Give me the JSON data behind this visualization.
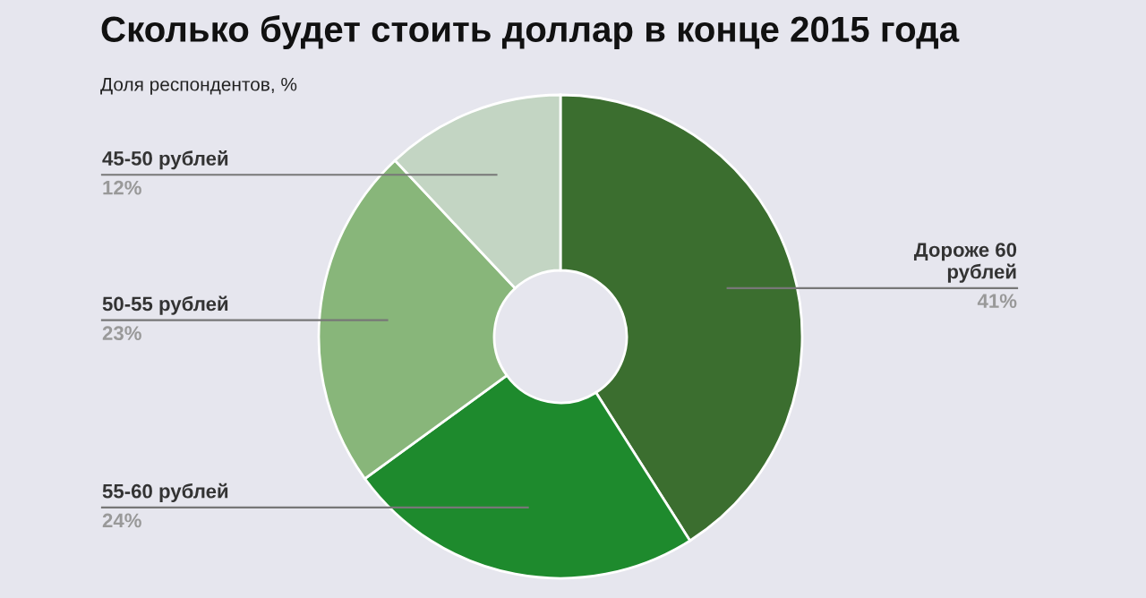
{
  "chart_data": {
    "type": "donut",
    "title": "Сколько будет стоить доллар в конце 2015 года",
    "subtitle": "Доля респондентов, %",
    "categories": [
      "Дороже 60 рублей",
      "55-60 рублей",
      "50-55 рублей",
      "45-50 рублей"
    ],
    "values": [
      41,
      24,
      23,
      12
    ],
    "colors": [
      "#3b6e2f",
      "#1e8a2d",
      "#88b67a",
      "#c3d5c3"
    ],
    "value_labels": [
      "41%",
      "24%",
      "23%",
      "12%"
    ]
  }
}
